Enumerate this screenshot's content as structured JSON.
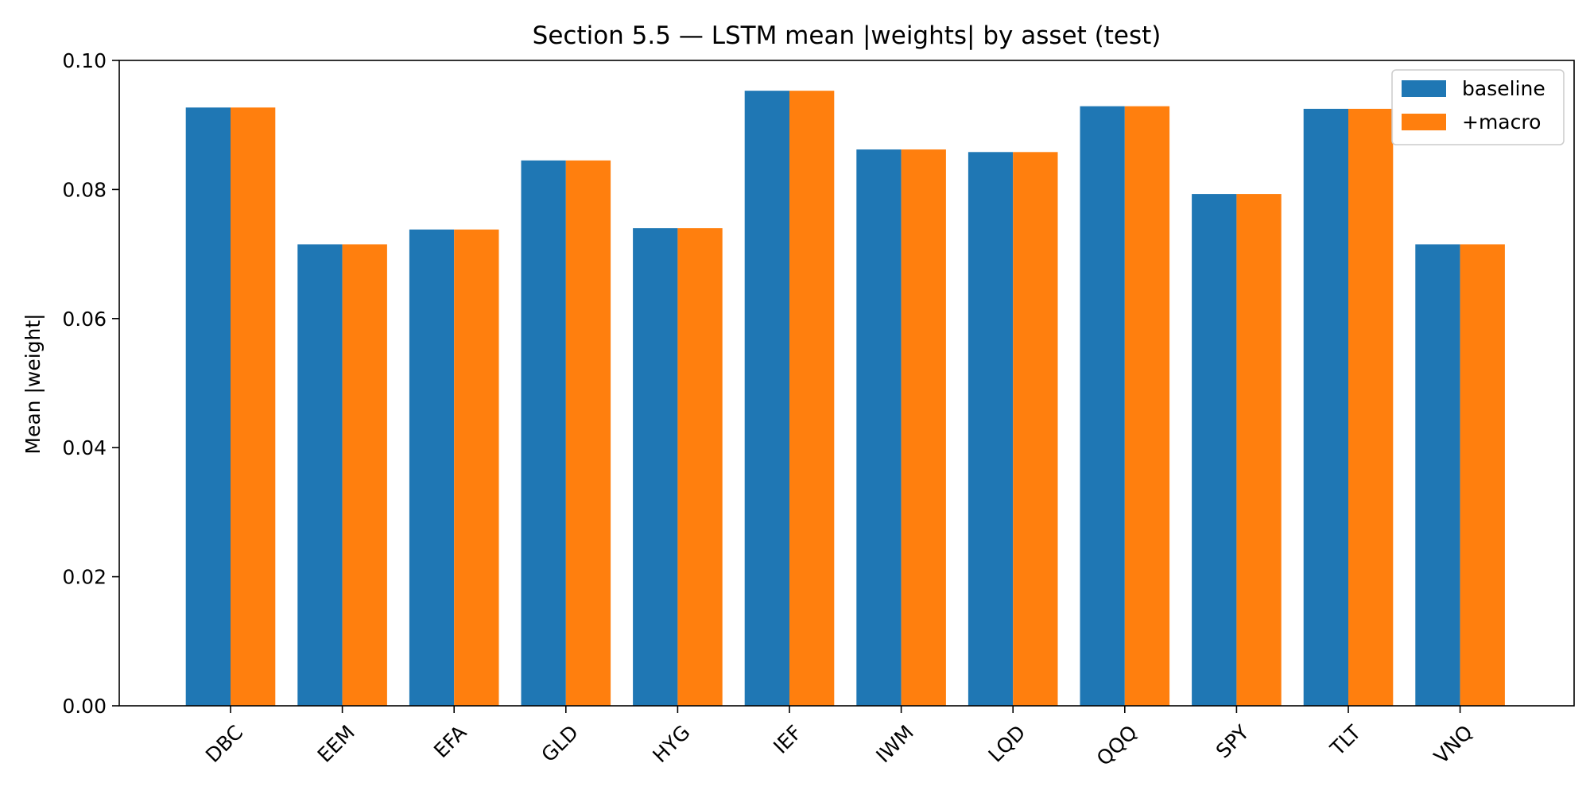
{
  "chart_data": {
    "type": "bar",
    "title": "Section 5.5 — LSTM mean |weights| by asset (test)",
    "xlabel": "",
    "ylabel": "Mean |weight|",
    "ylim": [
      0,
      0.1
    ],
    "yticks": [
      "0.00",
      "0.02",
      "0.04",
      "0.06",
      "0.08",
      "0.10"
    ],
    "grid": false,
    "legend_position": "top-right",
    "categories": [
      "DBC",
      "EEM",
      "EFA",
      "GLD",
      "HYG",
      "IEF",
      "IWM",
      "LQD",
      "QQQ",
      "SPY",
      "TLT",
      "VNQ"
    ],
    "series": [
      {
        "name": "baseline",
        "color": "#1f77b4",
        "values": [
          0.0927,
          0.0715,
          0.0738,
          0.0845,
          0.074,
          0.0953,
          0.0862,
          0.0858,
          0.0929,
          0.0793,
          0.0925,
          0.0715
        ]
      },
      {
        "name": "+macro",
        "color": "#ff7f0e",
        "values": [
          0.0927,
          0.0715,
          0.0738,
          0.0845,
          0.074,
          0.0953,
          0.0862,
          0.0858,
          0.0929,
          0.0793,
          0.0925,
          0.0715
        ]
      }
    ]
  }
}
